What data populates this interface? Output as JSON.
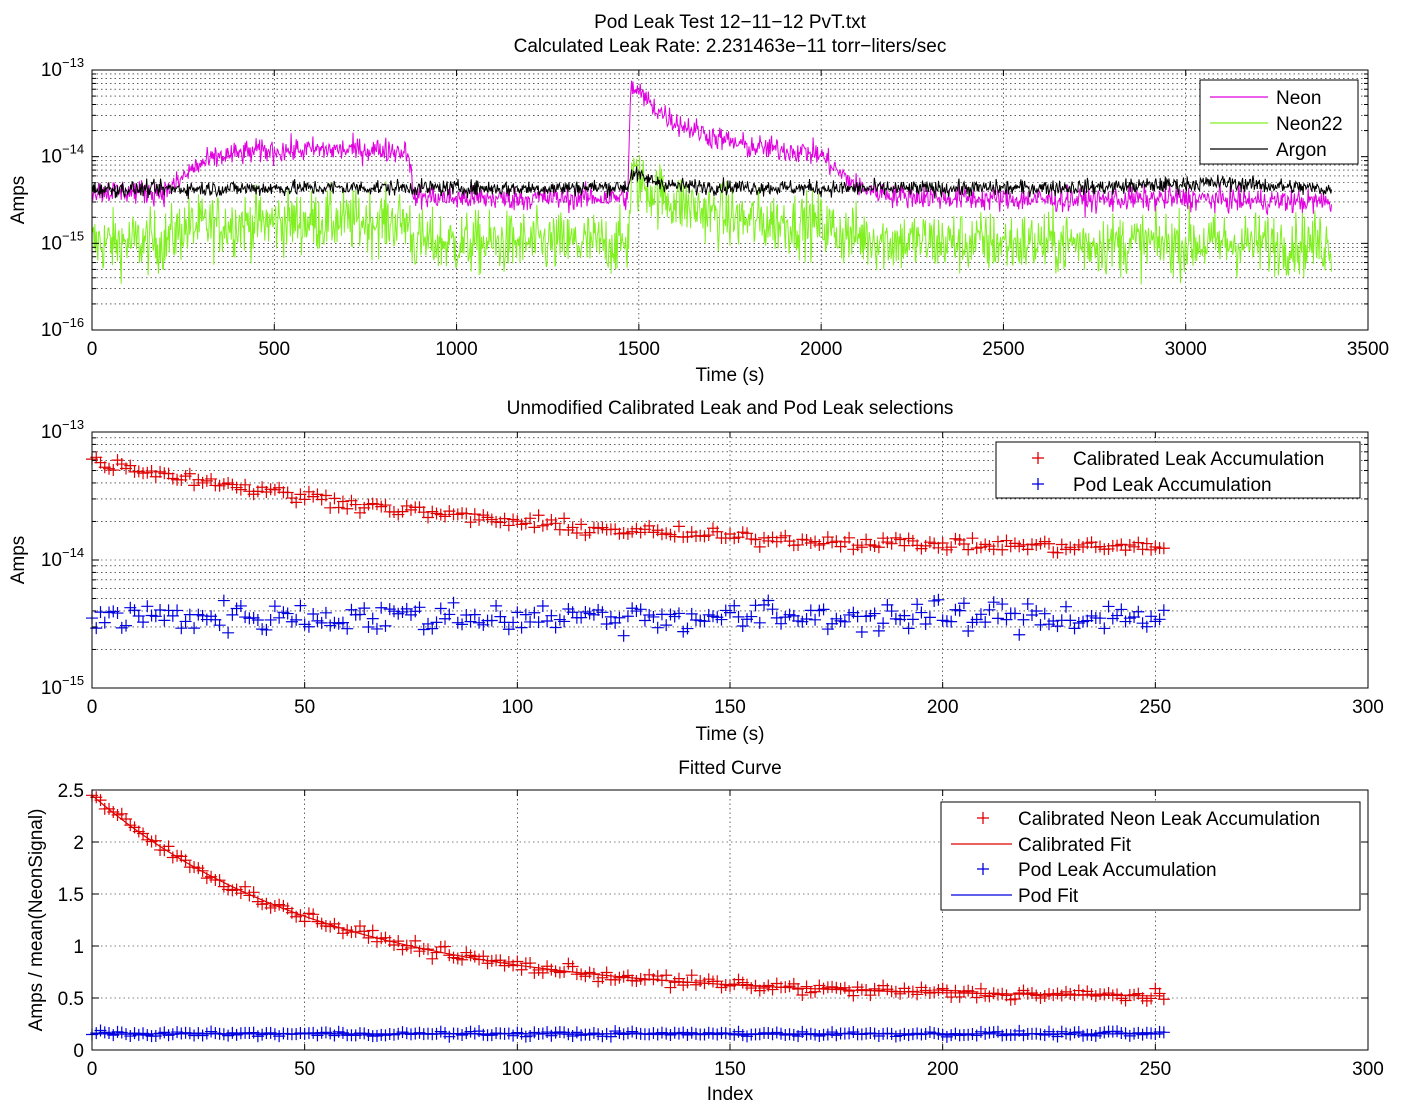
{
  "chart_data": [
    {
      "type": "line",
      "title": "Pod Leak Test 12−11−12 PvT.txt",
      "subtitle": "Calculated Leak Rate: 2.231463e−11 torr−liters/sec",
      "xlabel": "Time (s)",
      "ylabel": "Amps",
      "xlim": [
        0,
        3500
      ],
      "ylim": [
        1e-16,
        1e-13
      ],
      "yscale": "log",
      "grid": true,
      "legend_position": "top-right",
      "x_ticks": [
        "0",
        "500",
        "1000",
        "1500",
        "2000",
        "2500",
        "3000",
        "3500"
      ],
      "y_ticks": [
        {
          "base": "10",
          "exp": "−13"
        },
        {
          "base": "10",
          "exp": "−14"
        },
        {
          "base": "10",
          "exp": "−15"
        },
        {
          "base": "10",
          "exp": "−16"
        }
      ],
      "series": [
        {
          "name": "Neon",
          "color": "#e000e0",
          "x": [
            0,
            200,
            230,
            280,
            350,
            450,
            600,
            800,
            870,
            880,
            1000,
            1200,
            1470,
            1478,
            1500,
            1550,
            1600,
            1700,
            1800,
            1950,
            2000,
            2050,
            2100,
            2200,
            2400,
            2600,
            2800,
            3000,
            3200,
            3400
          ],
          "y": [
            4e-15,
            3.9e-15,
            4.8e-15,
            7.5e-15,
            1e-14,
            1.15e-14,
            1.2e-14,
            1.2e-14,
            1.15e-14,
            3.5e-15,
            3.3e-15,
            3.3e-15,
            3.4e-15,
            6.5e-14,
            5.5e-14,
            3.5e-14,
            2.5e-14,
            1.7e-14,
            1.3e-14,
            1.15e-14,
            1.05e-14,
            6.5e-15,
            4.5e-15,
            3.6e-15,
            3.3e-15,
            3.2e-15,
            3.2e-15,
            3.3e-15,
            3.1e-15,
            3e-15
          ]
        },
        {
          "name": "Neon22",
          "color": "#80f020",
          "x": [
            0,
            200,
            250,
            400,
            600,
            800,
            870,
            880,
            1000,
            1200,
            1470,
            1480,
            1500,
            1550,
            1600,
            1700,
            1800,
            1950,
            2000,
            2050,
            2200,
            2600,
            3000,
            3400
          ],
          "y": [
            1e-15,
            1.05e-15,
            1.5e-15,
            1.7e-15,
            1.8e-15,
            1.8e-15,
            1.75e-15,
            1.05e-15,
            1e-15,
            1e-15,
            1e-15,
            6e-15,
            5e-15,
            3.8e-15,
            3e-15,
            2.2e-15,
            1.8e-15,
            1.7e-15,
            1.65e-15,
            1.3e-15,
            1.05e-15,
            1e-15,
            1e-15,
            1e-15
          ]
        },
        {
          "name": "Argon",
          "color": "#000000",
          "x": [
            0,
            400,
            800,
            1200,
            1470,
            1480,
            1520,
            1600,
            2000,
            2400,
            2800,
            3100,
            3400
          ],
          "y": [
            4.2e-15,
            4.3e-15,
            4.4e-15,
            4.3e-15,
            4.5e-15,
            6.5e-15,
            5.5e-15,
            4.6e-15,
            4.3e-15,
            4.3e-15,
            4.5e-15,
            5e-15,
            4.2e-15
          ]
        }
      ]
    },
    {
      "type": "scatter",
      "title": "Unmodified Calibrated Leak and Pod Leak selections",
      "xlabel": "Time (s)",
      "ylabel": "Amps",
      "xlim": [
        0,
        300
      ],
      "ylim": [
        1e-15,
        1e-13
      ],
      "yscale": "log",
      "grid": true,
      "legend_position": "top-right",
      "x_ticks": [
        "0",
        "50",
        "100",
        "150",
        "200",
        "250",
        "300"
      ],
      "y_ticks": [
        {
          "base": "10",
          "exp": "−13"
        },
        {
          "base": "10",
          "exp": "−14"
        },
        {
          "base": "10",
          "exp": "−15"
        }
      ],
      "n_points": 252,
      "series": [
        {
          "name": "Calibrated Leak Accumulation",
          "color": "#e00000",
          "model": "y = 4.8e-14*exp(-x/55)+1.2e-14",
          "x_range": [
            0,
            252
          ],
          "approx_start": 6e-14,
          "approx_end": 1.25e-14
        },
        {
          "name": "Pod Leak Accumulation",
          "color": "#0000e0",
          "model": "constant",
          "x_range": [
            0,
            252
          ],
          "approx_level": 3.5e-15
        }
      ]
    },
    {
      "type": "scatter",
      "title": "Fitted Curve",
      "xlabel": "Index",
      "ylabel": "Amps / mean(NeonSignal)",
      "xlim": [
        0,
        300
      ],
      "ylim": [
        0,
        2.5
      ],
      "yscale": "linear",
      "grid": true,
      "legend_position": "top-right",
      "x_ticks": [
        "0",
        "50",
        "100",
        "150",
        "200",
        "250",
        "300"
      ],
      "y_ticks": [
        "0",
        "0.5",
        "1",
        "1.5",
        "2",
        "2.5"
      ],
      "n_points": 252,
      "series": [
        {
          "name": "Calibrated Neon Leak Accumulation",
          "color": "#e00000",
          "marker": "+",
          "x_range": [
            0,
            252
          ],
          "approx_start": 2.45,
          "approx_end": 0.5
        },
        {
          "name": "Calibrated Fit",
          "color": "#e00000",
          "marker": "line",
          "model": "y = 1.95*exp(-x/55)+0.5"
        },
        {
          "name": "Pod Leak Accumulation",
          "color": "#0000e0",
          "marker": "+",
          "x_range": [
            0,
            252
          ],
          "approx_level": 0.15
        },
        {
          "name": "Pod Fit",
          "color": "#0000e0",
          "marker": "line",
          "model": "y = 0.15"
        }
      ]
    }
  ]
}
